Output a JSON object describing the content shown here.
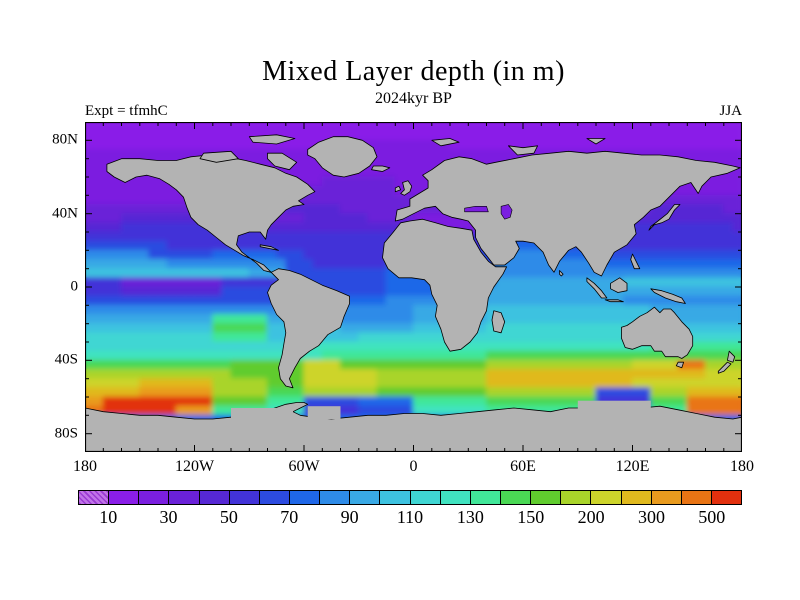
{
  "title": "Mixed Layer depth (in m)",
  "subtitle": "2024kyr BP",
  "experiment_label": "Expt = tfmhC",
  "season_label": "JJA",
  "axes": {
    "lat_labels": [
      {
        "text": "80N",
        "lat": 80
      },
      {
        "text": "40N",
        "lat": 40
      },
      {
        "text": "0",
        "lat": 0
      },
      {
        "text": "40S",
        "lat": -40
      },
      {
        "text": "80S",
        "lat": -80
      }
    ],
    "lon_labels": [
      {
        "text": "180",
        "lon": -180
      },
      {
        "text": "120W",
        "lon": -120
      },
      {
        "text": "60W",
        "lon": -60
      },
      {
        "text": "0",
        "lon": 0
      },
      {
        "text": "60E",
        "lon": 60
      },
      {
        "text": "120E",
        "lon": 120
      },
      {
        "text": "180",
        "lon": 180
      }
    ]
  },
  "colorbar": {
    "labels": [
      "10",
      "30",
      "50",
      "70",
      "90",
      "110",
      "130",
      "150",
      "200",
      "300",
      "500"
    ],
    "levels": [
      0,
      10,
      20,
      30,
      40,
      50,
      60,
      70,
      80,
      90,
      100,
      110,
      120,
      130,
      140,
      150,
      175,
      200,
      250,
      300,
      400,
      500
    ],
    "colors": [
      "#c173e8",
      "#8a1ee8",
      "#7b1fe0",
      "#6a21d8",
      "#5628d4",
      "#4233d8",
      "#2c4be0",
      "#1f67e8",
      "#2e8be8",
      "#39a9e5",
      "#3dc2e0",
      "#3fd6d3",
      "#40e3c0",
      "#41e799",
      "#4ad854",
      "#60cc2e",
      "#a9d42a",
      "#cdd42b",
      "#e0b91e",
      "#e99b1e",
      "#e97414",
      "#e2300e"
    ],
    "first_cell_hatched": true
  },
  "chart_data": {
    "type": "heatmap",
    "title": "Mixed Layer depth (in m)",
    "units": "m",
    "projection": "equirectangular",
    "lon_range": [
      -180,
      180
    ],
    "lat_range": [
      -90,
      90
    ],
    "land_color": "#b3b3b3",
    "coast_color": "#000000",
    "level_symbols": "0123456789abcdefghijkl",
    "grid": {
      "cols": 72,
      "rows": 36,
      "cell_deg": 5,
      "encoding": "run-length 'symbol:count' pairs per 5-degree row, row 0 = 90N..85N; symbol = colorbar level index (0=<10m ... l=>500m); land cells carry nearest ocean value and are painted over by land polygons",
      "rows_rle": [
        "1:72",
        "1:72",
        "1:28,2:12,1:32",
        "2:72",
        "2:72",
        "2:72",
        "2:26,3:8,2:38",
        "2:24,3:10,2:38",
        "2:14,3:58",
        "3:22,4:6,3:34,4:8,3:2",
        "3:4,4:15,3:5,4:7,3:5,2:7,3:17,4:12",
        "4:4,5:15,4:17,2:9,4:15,5:11,4:1",
        "5:46,6:7,5:19",
        "6:9,5:36,7:7,6:5,5:15",
        "8:7,6:7,7:7,6:3,5:9,6:12,8:6,7:6,6:15",
        "9:9,8:13,6:3,5:8,6:12,8:12,7:15",
        "a:18,9:4,6:11,7:12,8:27",
        "5:4,3:11,5:7,6:11,7:12,9:14,a:13",
        "5:4,4:11,6:18,7:11,9:28",
        "6:24,7:9,8:11,9:15,8:13",
        "8:36,9:8,a:18,9:10",
        "9:14,d:6,9:8,8:8,9:8,a:18,9:10",
        "a:14,e:6,a:8,9:8,a:8,b:18,a:10",
        "b:14,d:6,a:10,b:42",
        "b:24,c:38,d:10",
        "c:26,d:18,e:28",
        "e:16,f:8,h:4,f:16,g:16,h:5,k:3,g:4",
        "g:16,f:8,h:8,g:12,i:24,h:4",
        "h:6,i:8,g:6,f:4,h:8,g:12,i:16,h:12",
        "i:6,j:8,g:6,e:4,g:8,f:12,g:12,6:6,g:4,i:6",
        "j:2,l:12,f:6,d:4,6:6,7:6,d:8,e:12,5:6,e:4,k:6",
        "k:2,l:8,j:4,d:6,c:4,5:6,6:6,c:8,d:12,6:6,d:4,k:6",
        "7:72",
        "7:72",
        "7:72",
        "7:72"
      ]
    }
  }
}
